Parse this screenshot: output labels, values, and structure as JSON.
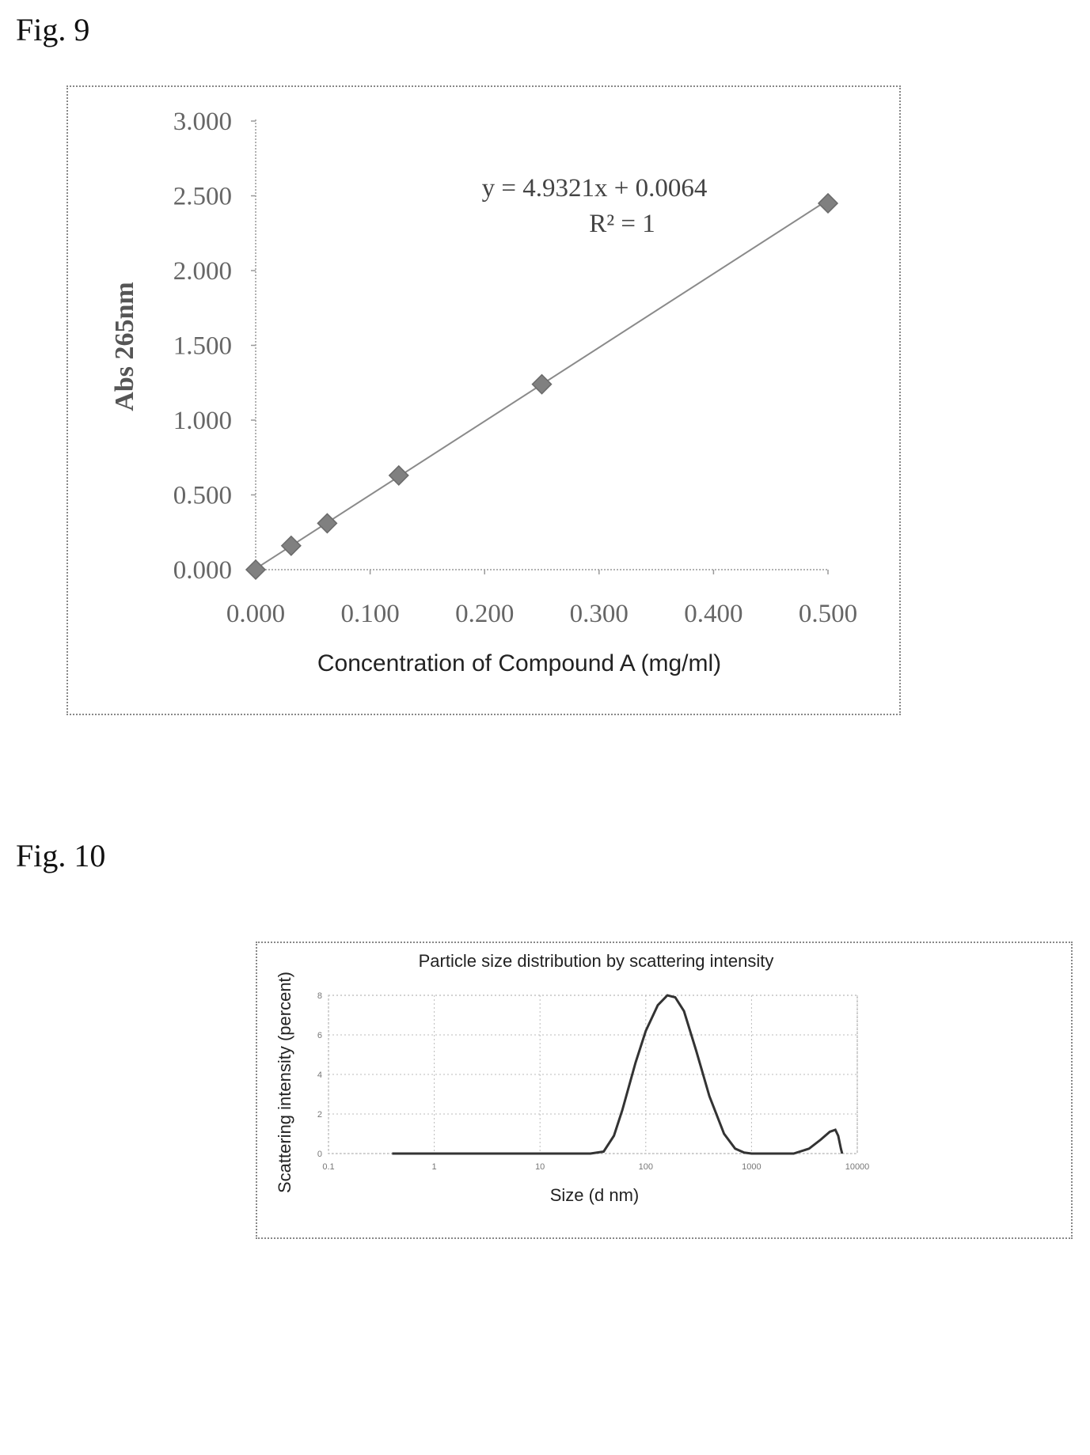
{
  "fig9": {
    "label": "Fig. 9",
    "chart_data": {
      "type": "scatter",
      "title": "",
      "xlabel": "Concentration of Compound A (mg/ml)",
      "ylabel": "Abs 265nm",
      "xlim": [
        0,
        0.5
      ],
      "ylim": [
        0,
        3
      ],
      "x_ticks": [
        "0.000",
        "0.100",
        "0.200",
        "0.300",
        "0.400",
        "0.500"
      ],
      "y_ticks": [
        "0.000",
        "0.500",
        "1.000",
        "1.500",
        "2.000",
        "2.500",
        "3.000"
      ],
      "grid": false,
      "series": [
        {
          "x": [
            0.0,
            0.031,
            0.0625,
            0.125,
            0.25,
            0.5
          ],
          "y": [
            0.0,
            0.16,
            0.31,
            0.63,
            1.24,
            2.45
          ]
        }
      ],
      "trendline": {
        "slope": 4.9321,
        "intercept": 0.0064
      },
      "annotations": [
        "y = 4.9321x + 0.0064",
        "R² = 1"
      ],
      "marker_color": "#808080",
      "line_color": "#8a8a8a"
    }
  },
  "fig10": {
    "label": "Fig. 10",
    "chart_data": {
      "type": "line",
      "title": "Particle size distribution by scattering intensity",
      "xlabel": "Size (d nm)",
      "ylabel": "Scattering intensity (percent)",
      "x_scale": "log",
      "xlim": [
        0.1,
        10000
      ],
      "ylim": [
        0,
        8
      ],
      "x_ticks": [
        "0.1",
        "1",
        "10",
        "100",
        "1000",
        "10000"
      ],
      "y_ticks": [
        "0",
        "2",
        "4",
        "6",
        "8"
      ],
      "grid": true,
      "series": [
        {
          "x": [
            0.4,
            1,
            10,
            30,
            40,
            50,
            60,
            80,
            100,
            130,
            160,
            190,
            230,
            300,
            400,
            550,
            700,
            850,
            1000,
            1500,
            2500,
            3500,
            4500,
            5500,
            6200,
            6600,
            7000,
            7200
          ],
          "y": [
            0,
            0,
            0,
            0,
            0.1,
            0.9,
            2.2,
            4.6,
            6.2,
            7.5,
            8.0,
            7.9,
            7.2,
            5.2,
            2.9,
            1.0,
            0.25,
            0.05,
            0,
            0,
            0,
            0.25,
            0.7,
            1.1,
            1.2,
            0.9,
            0.25,
            0
          ]
        }
      ],
      "line_color": "#333333"
    }
  }
}
